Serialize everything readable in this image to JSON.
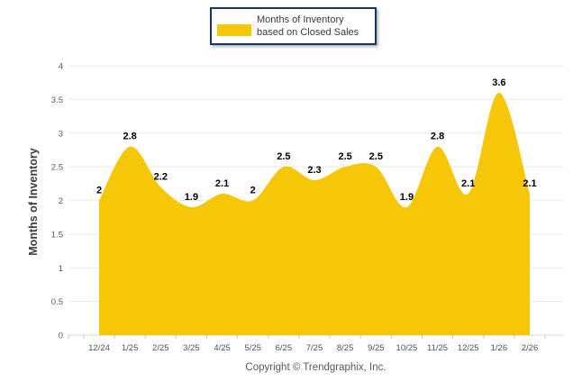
{
  "legend": {
    "label": "Months of Inventory based on Closed Sales"
  },
  "ylabel": "Months of Inventory",
  "footer": {
    "copyright": "Copyright © Trendgraphix, Inc."
  },
  "colors": {
    "area": "#f6c609",
    "legend_border": "#17365d",
    "grid": "#e9e9e9",
    "axis": "#d6d6d6",
    "tick": "#c8c8c8",
    "x_tick_label": "#44546a",
    "y_tick_label": "#595959",
    "data_label": "#000000",
    "copyright": "#595959"
  },
  "chart_data": {
    "type": "area",
    "title": "",
    "xlabel": "",
    "ylabel": "Months of Inventory",
    "legend_position": "top",
    "grid": true,
    "data_labels": true,
    "ylim": [
      0,
      4
    ],
    "ytick_step": 0.5,
    "categories": [
      "12/24",
      "1/25",
      "2/25",
      "3/25",
      "4/25",
      "5/25",
      "6/25",
      "7/25",
      "8/25",
      "9/25",
      "10/25",
      "11/25",
      "12/25",
      "1/26",
      "2/26"
    ],
    "series": [
      {
        "name": "Months of Inventory based on Closed Sales",
        "values": [
          2,
          2.8,
          2.2,
          1.9,
          2.1,
          2,
          2.5,
          2.3,
          2.5,
          2.5,
          1.9,
          2.8,
          2.1,
          3.6,
          2.1
        ]
      }
    ]
  }
}
